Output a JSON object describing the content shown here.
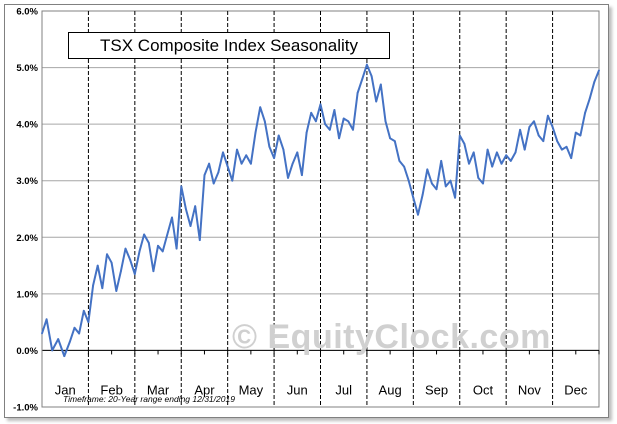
{
  "watermark": "© EquityClock.com",
  "chart_data": {
    "type": "line",
    "title": "TSX Composite Index Seasonality",
    "footnote": "Timeframe: 20-Year range ending 12/31/2019",
    "xlabel": "",
    "ylabel": "",
    "ylim": [
      -1.0,
      6.0
    ],
    "y_ticks": [
      "-1.0%",
      "0.0%",
      "1.0%",
      "2.0%",
      "3.0%",
      "4.0%",
      "5.0%",
      "6.0%"
    ],
    "x_ticks": [
      "Jan",
      "Feb",
      "Mar",
      "Apr",
      "May",
      "Jun",
      "Jul",
      "Aug",
      "Sep",
      "Oct",
      "Nov",
      "Dec"
    ],
    "grid": true,
    "line_color": "#4472C4",
    "series": [
      {
        "x": [
          0.0,
          0.1,
          0.22,
          0.35,
          0.48,
          0.6,
          0.7,
          0.8,
          0.9,
          1.0,
          1.1,
          1.2,
          1.3,
          1.4,
          1.5,
          1.6,
          1.7,
          1.8,
          1.9,
          2.0,
          2.1,
          2.2,
          2.3,
          2.4,
          2.5,
          2.6,
          2.7,
          2.8,
          2.9,
          3.0,
          3.1,
          3.2,
          3.3,
          3.4,
          3.5,
          3.6,
          3.7,
          3.8,
          3.9,
          4.0,
          4.1,
          4.2,
          4.3,
          4.4,
          4.5,
          4.6,
          4.7,
          4.8,
          4.9,
          5.0,
          5.1,
          5.2,
          5.3,
          5.4,
          5.5,
          5.6,
          5.7,
          5.8,
          5.9,
          6.0,
          6.1,
          6.2,
          6.3,
          6.4,
          6.5,
          6.6,
          6.7,
          6.8,
          6.9,
          7.0,
          7.1,
          7.2,
          7.3,
          7.4,
          7.5,
          7.6,
          7.7,
          7.8,
          7.9,
          8.0,
          8.1,
          8.2,
          8.3,
          8.4,
          8.5,
          8.6,
          8.7,
          8.8,
          8.9,
          9.0,
          9.1,
          9.2,
          9.3,
          9.4,
          9.5,
          9.6,
          9.7,
          9.8,
          9.9,
          10.0,
          10.1,
          10.2,
          10.3,
          10.4,
          10.5,
          10.6,
          10.7,
          10.8,
          10.9,
          11.0,
          11.1,
          11.2,
          11.3,
          11.4,
          11.5,
          11.6,
          11.7,
          11.8,
          11.9,
          12.0
        ],
        "values": [
          0.3,
          0.55,
          0.0,
          0.2,
          -0.1,
          0.15,
          0.4,
          0.3,
          0.7,
          0.5,
          1.15,
          1.5,
          1.1,
          1.7,
          1.55,
          1.05,
          1.4,
          1.8,
          1.6,
          1.35,
          1.75,
          2.05,
          1.9,
          1.4,
          1.85,
          1.75,
          2.05,
          2.35,
          1.8,
          2.9,
          2.5,
          2.2,
          2.55,
          1.95,
          3.1,
          3.3,
          2.95,
          3.15,
          3.5,
          3.25,
          3.0,
          3.55,
          3.3,
          3.45,
          3.3,
          3.85,
          4.3,
          4.05,
          3.6,
          3.4,
          3.8,
          3.55,
          3.05,
          3.3,
          3.5,
          3.1,
          3.85,
          4.2,
          4.05,
          4.35,
          4.0,
          3.9,
          4.25,
          3.75,
          4.1,
          4.05,
          3.9,
          4.55,
          4.8,
          5.05,
          4.85,
          4.4,
          4.7,
          4.05,
          3.75,
          3.7,
          3.35,
          3.25,
          3.0,
          2.7,
          2.4,
          2.75,
          3.2,
          2.95,
          2.85,
          3.35,
          2.9,
          3.0,
          2.7,
          3.8,
          3.65,
          3.3,
          3.5,
          3.05,
          2.95,
          3.55,
          3.25,
          3.5,
          3.3,
          3.45,
          3.35,
          3.5,
          3.9,
          3.55,
          3.95,
          4.05,
          3.8,
          3.7,
          4.15,
          3.95,
          3.7,
          3.55,
          3.6,
          3.4,
          3.85,
          3.8,
          4.2,
          4.45,
          4.75,
          4.95
        ]
      }
    ]
  }
}
